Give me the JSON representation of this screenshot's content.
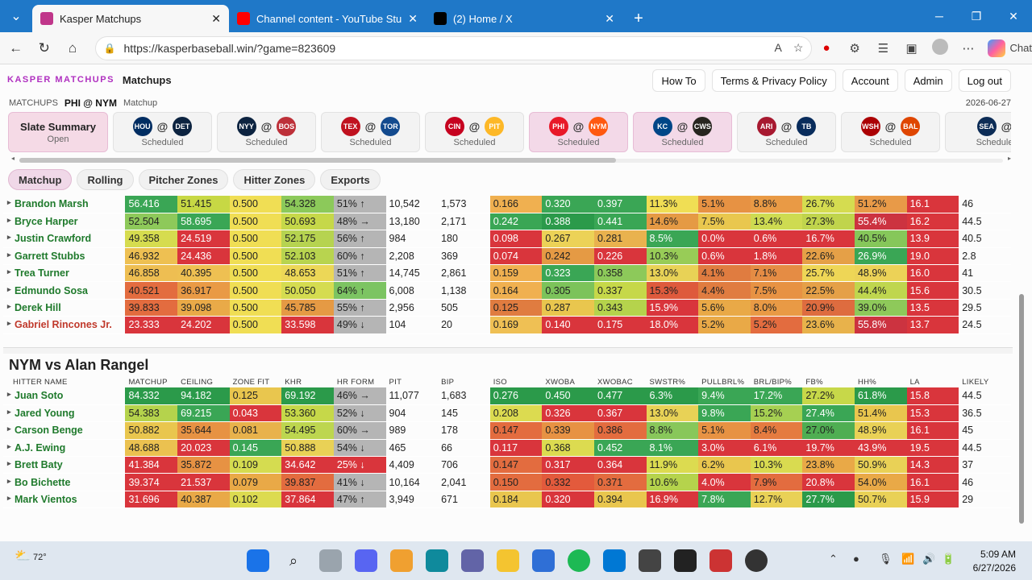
{
  "browser": {
    "tabs": [
      {
        "title": "Kasper Matchups",
        "active": true,
        "icon": "app-favicon",
        "color": "#c0368a"
      },
      {
        "title": "Channel content - YouTube Studio",
        "active": false,
        "icon": "youtube-icon",
        "color": "#ff0000"
      },
      {
        "title": "(2) Home / X",
        "active": false,
        "icon": "x-icon",
        "color": "#000000"
      }
    ],
    "url": "https://kasperbaseball.win/?game=823609",
    "chat_label": "Chat"
  },
  "app": {
    "brand": "KASPER MATCHUPS",
    "title": "Matchups",
    "header_buttons": [
      "How To",
      "Terms & Privacy Policy",
      "Account",
      "Admin",
      "Log out"
    ],
    "crumb_section": "MATCHUPS",
    "crumb_game": "PHI @ NYM",
    "crumb_page": "Matchup",
    "date": "2026-06-27"
  },
  "slate": {
    "label": "Slate Summary",
    "status": "Open"
  },
  "games": [
    {
      "away": "HOU",
      "home": "DET",
      "away_color": "#002d62",
      "home_color": "#0c2340",
      "status": "Scheduled",
      "selected": false
    },
    {
      "away": "NYY",
      "home": "BOS",
      "away_color": "#0c2340",
      "home_color": "#bd3039",
      "status": "Scheduled",
      "selected": false
    },
    {
      "away": "TEX",
      "home": "TOR",
      "away_color": "#c0111f",
      "home_color": "#134a8e",
      "status": "Scheduled",
      "selected": false
    },
    {
      "away": "CIN",
      "home": "PIT",
      "away_color": "#c6011f",
      "home_color": "#fdb827",
      "status": "Scheduled",
      "selected": false
    },
    {
      "away": "PHI",
      "home": "NYM",
      "away_color": "#e81828",
      "home_color": "#ff5910",
      "status": "Scheduled",
      "selected": true
    },
    {
      "away": "KC",
      "home": "CWS",
      "away_color": "#004687",
      "home_color": "#27251f",
      "status": "Scheduled",
      "selected": true
    },
    {
      "away": "ARI",
      "home": "TB",
      "away_color": "#a71930",
      "home_color": "#092c5c",
      "status": "Scheduled",
      "selected": false
    },
    {
      "away": "WSH",
      "home": "BAL",
      "away_color": "#ab0003",
      "home_color": "#df4601",
      "status": "Scheduled",
      "selected": false
    },
    {
      "away": "SEA",
      "home": "",
      "away_color": "#0c2c56",
      "home_color": "#c41e3a",
      "status": "Schedule",
      "selected": false
    }
  ],
  "view_tabs": [
    "Matchup",
    "Rolling",
    "Pitcher Zones",
    "Hitter Zones",
    "Exports"
  ],
  "section1": {
    "rows": [
      {
        "name": "Brandon Marsh",
        "red": false,
        "vals": [
          "56.416",
          "51.415",
          "0.500",
          "54.328",
          "51% ↑",
          "10,542",
          "1,573",
          "0.166",
          "0.320",
          "0.397",
          "11.3%",
          "5.1%",
          "8.8%",
          "26.7%",
          "51.2%",
          "16.1",
          "46"
        ],
        "colors": [
          "#3aa655",
          "#c7d844",
          "#f0de54",
          "#8cc95a",
          "#b5b5b5",
          "",
          "",
          "#f0b050",
          "#3aa655",
          "#3aa655",
          "#f0de54",
          "#e79243",
          "#e99a45",
          "#d5dc50",
          "#e89a48",
          "#d9353c",
          ""
        ]
      },
      {
        "name": "Bryce Harper",
        "red": false,
        "vals": [
          "52.504",
          "58.695",
          "0.500",
          "50.693",
          "48% →",
          "13,180",
          "2,171",
          "0.242",
          "0.388",
          "0.441",
          "14.6%",
          "7.5%",
          "13.4%",
          "27.3%",
          "55.4%",
          "16.2",
          "44.5"
        ],
        "colors": [
          "#8ec95a",
          "#3aa655",
          "#f0de54",
          "#c6d849",
          "#b5b5b5",
          "",
          "",
          "#3aa655",
          "#2b9a4a",
          "#3aa655",
          "#e59a44",
          "#e9c74e",
          "#cedb51",
          "#c0d44c",
          "#cc3340",
          "#d9353c",
          ""
        ]
      },
      {
        "name": "Justin Crawford",
        "red": false,
        "vals": [
          "49.358",
          "24.519",
          "0.500",
          "52.175",
          "56% ↑",
          "984",
          "180",
          "0.098",
          "0.267",
          "0.281",
          "8.5%",
          "0.0%",
          "0.6%",
          "16.7%",
          "40.5%",
          "13.9",
          "40.5"
        ],
        "colors": [
          "#d6dc4f",
          "#d9353c",
          "#f0de54",
          "#b6d350",
          "#b5b5b5",
          "",
          "",
          "#d9353c",
          "#ecd257",
          "#e9b24e",
          "#3aa655",
          "#d9353c",
          "#d9353c",
          "#d9353c",
          "#86c75a",
          "#d9353c",
          ""
        ]
      },
      {
        "name": "Garrett Stubbs",
        "red": false,
        "vals": [
          "46.932",
          "24.436",
          "0.500",
          "52.103",
          "60% ↑",
          "2,208",
          "369",
          "0.074",
          "0.242",
          "0.226",
          "10.3%",
          "0.6%",
          "1.8%",
          "22.6%",
          "26.9%",
          "19.0",
          "2.8"
        ],
        "colors": [
          "#eec052",
          "#d9353c",
          "#f0de54",
          "#b8d44f",
          "#b5b5b5",
          "",
          "",
          "#d9353c",
          "#e59a44",
          "#d9353c",
          "#98cc57",
          "#d9353c",
          "#d9353c",
          "#e5a047",
          "#3aa655",
          "#d9353c",
          ""
        ]
      },
      {
        "name": "Trea Turner",
        "red": false,
        "vals": [
          "46.858",
          "40.395",
          "0.500",
          "48.653",
          "51% ↑",
          "14,745",
          "2,861",
          "0.159",
          "0.323",
          "0.358",
          "13.0%",
          "4.1%",
          "7.1%",
          "25.7%",
          "48.9%",
          "16.0",
          "41"
        ],
        "colors": [
          "#eebe52",
          "#eec052",
          "#f0de54",
          "#ecd757",
          "#b5b5b5",
          "",
          "",
          "#f0b050",
          "#3aa655",
          "#8dc95a",
          "#e8d256",
          "#e07c40",
          "#e58c44",
          "#eed656",
          "#ecd257",
          "#d9353c",
          ""
        ]
      },
      {
        "name": "Edmundo Sosa",
        "red": false,
        "vals": [
          "40.521",
          "36.917",
          "0.500",
          "50.050",
          "64% ↑",
          "6,008",
          "1,138",
          "0.164",
          "0.305",
          "0.337",
          "15.3%",
          "4.4%",
          "7.5%",
          "22.5%",
          "44.4%",
          "15.6",
          "30.5"
        ],
        "colors": [
          "#e36c3f",
          "#e99a45",
          "#f0de54",
          "#d5dc50",
          "#7cc462",
          "",
          "",
          "#f0b050",
          "#7cc35a",
          "#c6d849",
          "#de5a3c",
          "#e07c40",
          "#e79243",
          "#e5a047",
          "#bfd64e",
          "#d9353c",
          ""
        ]
      },
      {
        "name": "Derek Hill",
        "red": false,
        "vals": [
          "39.833",
          "39.098",
          "0.500",
          "45.785",
          "55% ↑",
          "2,956",
          "505",
          "0.125",
          "0.287",
          "0.343",
          "15.9%",
          "5.6%",
          "8.0%",
          "20.9%",
          "39.0%",
          "13.5",
          "29.5"
        ],
        "colors": [
          "#e36c3f",
          "#e9aa48",
          "#f0de54",
          "#e59a44",
          "#b5b5b5",
          "",
          "",
          "#e07c40",
          "#e9c64e",
          "#b5d34c",
          "#d9353c",
          "#e9a947",
          "#e99a45",
          "#de6c3f",
          "#8ec95a",
          "#d9353c",
          ""
        ]
      },
      {
        "name": "Gabriel Rincones Jr.",
        "red": true,
        "vals": [
          "23.333",
          "24.202",
          "0.500",
          "33.598",
          "49% ↓",
          "104",
          "20",
          "0.169",
          "0.140",
          "0.175",
          "18.0%",
          "5.2%",
          "5.2%",
          "23.6%",
          "55.8%",
          "13.7",
          "24.5"
        ],
        "colors": [
          "#d9353c",
          "#d9353c",
          "#f0de54",
          "#d9353c",
          "#b5b5b5",
          "",
          "",
          "#efc054",
          "#d9353c",
          "#d9353c",
          "#d9353c",
          "#e9a947",
          "#e36c3f",
          "#e8b24b",
          "#cc3340",
          "#d9353c",
          ""
        ]
      }
    ]
  },
  "section2": {
    "title": "NYM vs Alan Rangel",
    "headers": [
      "HITTER NAME",
      "MATCHUP",
      "CEILING",
      "ZONE FIT",
      "KHR",
      "HR FORM",
      "PIT",
      "BIP",
      "ISO",
      "XWOBA",
      "XWOBAC",
      "SWSTR%",
      "PULLBRL%",
      "BRL/BIP%",
      "FB%",
      "HH%",
      "LA",
      "LIKELY"
    ],
    "rows": [
      {
        "name": "Juan Soto",
        "red": false,
        "vals": [
          "84.332",
          "94.182",
          "0.125",
          "69.192",
          "46% →",
          "11,077",
          "1,683",
          "0.276",
          "0.450",
          "0.477",
          "6.3%",
          "9.4%",
          "17.2%",
          "27.2%",
          "61.8%",
          "15.8",
          "44.5"
        ],
        "colors": [
          "#2b9a4a",
          "#2b9a4a",
          "#e9c64e",
          "#2b9a4a",
          "#b5b5b5",
          "",
          "",
          "#2b9a4a",
          "#2b9a4a",
          "#2b9a4a",
          "#2b9a4a",
          "#3aa655",
          "#3aa655",
          "#c7d849",
          "#2b9a4a",
          "#d9353c",
          ""
        ]
      },
      {
        "name": "Jared Young",
        "red": false,
        "vals": [
          "54.383",
          "69.215",
          "0.043",
          "53.360",
          "52% ↓",
          "904",
          "145",
          "0.208",
          "0.326",
          "0.367",
          "13.0%",
          "9.8%",
          "15.2%",
          "27.4%",
          "51.4%",
          "15.3",
          "36.5"
        ],
        "colors": [
          "#b5d34c",
          "#3aa655",
          "#d9353c",
          "#c6d849",
          "#b5b5b5",
          "",
          "",
          "#dcdb50",
          "#d9353c",
          "#d9353c",
          "#e8d256",
          "#3aa655",
          "#a6d052",
          "#3aa655",
          "#e9c64e",
          "#d9353c",
          ""
        ]
      },
      {
        "name": "Carson Benge",
        "red": false,
        "vals": [
          "50.882",
          "35.644",
          "0.081",
          "54.495",
          "60% →",
          "989",
          "178",
          "0.147",
          "0.339",
          "0.386",
          "8.8%",
          "5.1%",
          "8.4%",
          "27.0%",
          "48.9%",
          "16.1",
          "45"
        ],
        "colors": [
          "#e9c64e",
          "#e79243",
          "#e8b24b",
          "#bdd64f",
          "#b5b5b5",
          "",
          "",
          "#e36c3f",
          "#e79243",
          "#e36c3f",
          "#88c75a",
          "#e79243",
          "#e57b40",
          "#4fae52",
          "#e9d156",
          "#d9353c",
          ""
        ]
      },
      {
        "name": "A.J. Ewing",
        "red": false,
        "vals": [
          "48.688",
          "20.023",
          "0.145",
          "50.888",
          "54% ↓",
          "465",
          "66",
          "0.117",
          "0.368",
          "0.452",
          "8.1%",
          "3.0%",
          "6.1%",
          "19.7%",
          "43.9%",
          "19.5",
          "44.5"
        ],
        "colors": [
          "#ebc150",
          "#d9353c",
          "#3aa655",
          "#e9d156",
          "#b5b5b5",
          "",
          "",
          "#d9353c",
          "#dcdb50",
          "#3aa655",
          "#3aa655",
          "#d9353c",
          "#d9353c",
          "#d9353c",
          "#d9353c",
          "#d9353c",
          ""
        ]
      },
      {
        "name": "Brett Baty",
        "red": false,
        "vals": [
          "41.384",
          "35.872",
          "0.109",
          "34.642",
          "25% ↓",
          "4,409",
          "706",
          "0.147",
          "0.317",
          "0.364",
          "11.9%",
          "6.2%",
          "10.3%",
          "23.8%",
          "50.9%",
          "14.3",
          "37"
        ],
        "colors": [
          "#d9353c",
          "#e79243",
          "#d5dc50",
          "#d9353c",
          "#d9353c",
          "",
          "",
          "#e36c3f",
          "#d9353c",
          "#d9353c",
          "#dcdb50",
          "#e9c64e",
          "#d9db50",
          "#e9a947",
          "#e9d156",
          "#d9353c",
          ""
        ]
      },
      {
        "name": "Bo Bichette",
        "red": false,
        "vals": [
          "39.374",
          "21.537",
          "0.079",
          "39.837",
          "41% ↓",
          "10,164",
          "2,041",
          "0.150",
          "0.332",
          "0.371",
          "10.6%",
          "4.0%",
          "7.9%",
          "20.8%",
          "54.0%",
          "16.1",
          "46"
        ],
        "colors": [
          "#d9353c",
          "#d9353c",
          "#e9a947",
          "#e36c3f",
          "#b5b5b5",
          "",
          "",
          "#e36c3f",
          "#e35a3c",
          "#e36c3f",
          "#b5d34c",
          "#d9353c",
          "#e36c3f",
          "#d9353c",
          "#e9a947",
          "#d9353c",
          ""
        ]
      },
      {
        "name": "Mark Vientos",
        "red": false,
        "vals": [
          "31.696",
          "40.387",
          "0.102",
          "37.864",
          "47% ↑",
          "3,949",
          "671",
          "0.184",
          "0.320",
          "0.394",
          "16.9%",
          "7.8%",
          "12.7%",
          "27.7%",
          "50.7%",
          "15.9",
          "29"
        ],
        "colors": [
          "#d9353c",
          "#e9a947",
          "#dcdb50",
          "#d9353c",
          "#b5b5b5",
          "",
          "",
          "#e9c64e",
          "#d9353c",
          "#e9c64e",
          "#d9353c",
          "#3aa655",
          "#e9d156",
          "#2b9a4a",
          "#e9d156",
          "#d9353c",
          ""
        ]
      }
    ]
  },
  "taskbar": {
    "temp": "72°",
    "time": "5:09 AM",
    "date": "6/27/2026"
  }
}
